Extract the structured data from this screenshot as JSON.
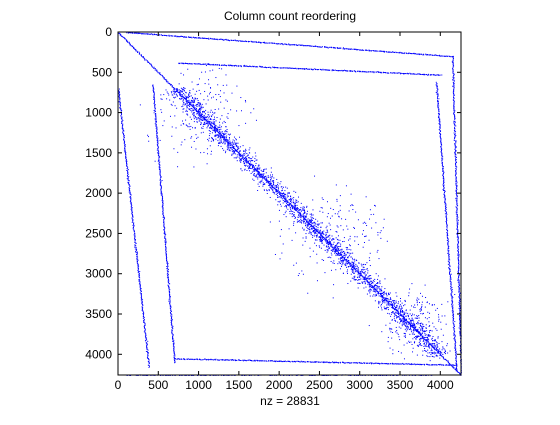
{
  "chart_data": {
    "type": "spy",
    "title": "Column count reordering",
    "xlabel": "nz = 28831",
    "ylabel": "",
    "matrix_size": 4257,
    "xlim": [
      0,
      4257
    ],
    "ylim": [
      4257,
      0
    ],
    "x_ticks": [
      0,
      500,
      1000,
      1500,
      2000,
      2500,
      3000,
      3500,
      4000
    ],
    "y_ticks": [
      0,
      500,
      1000,
      1500,
      2000,
      2500,
      3000,
      3500,
      4000
    ],
    "nonzero_count": 28831,
    "marker_color": "#0000ff",
    "grid": false,
    "structures": [
      {
        "kind": "main-diagonal",
        "from": [
          0,
          0
        ],
        "to": [
          4257,
          4257
        ]
      },
      {
        "kind": "off-diagonal-band",
        "from": [
          700,
          700
        ],
        "to": [
          4000,
          4000
        ],
        "spread": 90
      },
      {
        "kind": "top-edge-line",
        "from": [
          100,
          0
        ],
        "to": [
          4150,
          300
        ]
      },
      {
        "kind": "top-edge-line",
        "from": [
          750,
          380
        ],
        "to": [
          4000,
          530
        ]
      },
      {
        "kind": "bottom-edge-line",
        "from": [
          700,
          4050
        ],
        "to": [
          4200,
          4130
        ]
      },
      {
        "kind": "bottom-edge-line",
        "from": [
          100,
          4257
        ],
        "to": [
          3900,
          4257
        ]
      },
      {
        "kind": "left-edge-line",
        "from": [
          0,
          700
        ],
        "to": [
          380,
          4150
        ]
      },
      {
        "kind": "left-edge-line",
        "from": [
          430,
          650
        ],
        "to": [
          700,
          4100
        ]
      },
      {
        "kind": "right-edge-line",
        "from": [
          3950,
          620
        ],
        "to": [
          4200,
          4200
        ]
      },
      {
        "kind": "right-edge-line",
        "from": [
          4150,
          300
        ],
        "to": [
          4257,
          4257
        ]
      }
    ],
    "scatter_clusters": [
      {
        "center": [
          1000,
          1000
        ],
        "spread": 260
      },
      {
        "center": [
          2700,
          2550
        ],
        "spread": 300
      },
      {
        "center": [
          3700,
          3600
        ],
        "spread": 200
      }
    ]
  }
}
